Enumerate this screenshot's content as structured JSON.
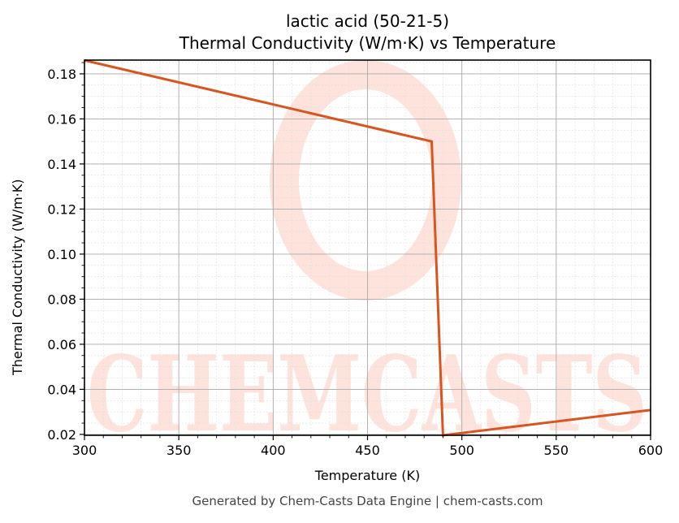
{
  "chart_data": {
    "type": "line",
    "title": "lactic acid (50-21-5)",
    "subtitle": "Thermal Conductivity (W/m·K) vs Temperature",
    "xlabel": "Temperature (K)",
    "ylabel": "Thermal Conductivity (W/m·K)",
    "xlim": [
      300,
      600
    ],
    "ylim": [
      0.0196,
      0.1861
    ],
    "x_ticks": [
      300,
      350,
      400,
      450,
      500,
      550,
      600
    ],
    "x_tick_labels": [
      "300",
      "350",
      "400",
      "450",
      "500",
      "550",
      "600"
    ],
    "y_ticks": [
      0.02,
      0.04,
      0.06,
      0.08,
      0.1,
      0.12,
      0.14,
      0.16,
      0.18
    ],
    "y_tick_labels": [
      "0.02",
      "0.04",
      "0.06",
      "0.08",
      "0.10",
      "0.12",
      "0.14",
      "0.16",
      "0.18"
    ],
    "grid": true,
    "minor_grid": true,
    "legend": null,
    "series": [
      {
        "name": "Thermal Conductivity",
        "color": "#d9541e",
        "x": [
          300,
          484,
          490,
          600
        ],
        "y": [
          0.186,
          0.15,
          0.0196,
          0.0308
        ]
      }
    ],
    "watermark": "CHEMCASTS",
    "footer": "Generated by Chem-Casts Data Engine | chem-casts.com"
  }
}
